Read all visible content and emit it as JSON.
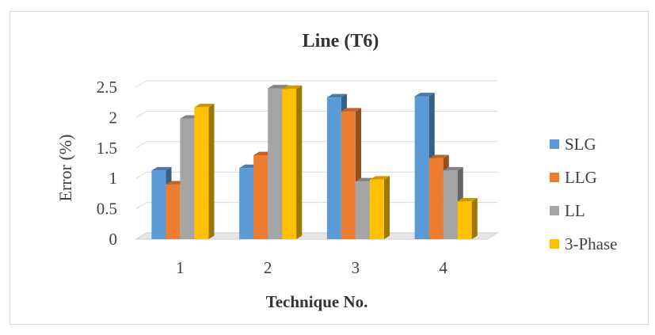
{
  "chart_data": {
    "type": "bar",
    "title": "Line (T6)",
    "xlabel": "Technique No.",
    "ylabel": "Error  (%)",
    "categories": [
      "1",
      "2",
      "3",
      "4"
    ],
    "yticks": [
      "0",
      "0.5",
      "1",
      "1.5",
      "2",
      "2.5"
    ],
    "ylim": [
      0,
      2.5
    ],
    "grid": true,
    "legend_position": "right",
    "series": [
      {
        "name": "SLG",
        "color": "#5B9BD5",
        "values": [
          1.13,
          1.17,
          2.33,
          2.35
        ]
      },
      {
        "name": "LLG",
        "color": "#ED7D31",
        "values": [
          0.9,
          1.38,
          2.1,
          1.33
        ]
      },
      {
        "name": "LL",
        "color": "#A5A5A5",
        "values": [
          1.98,
          2.48,
          0.95,
          1.13
        ]
      },
      {
        "name": "3-Phase",
        "color": "#FFC000",
        "values": [
          2.17,
          2.47,
          0.98,
          0.62
        ]
      }
    ]
  }
}
